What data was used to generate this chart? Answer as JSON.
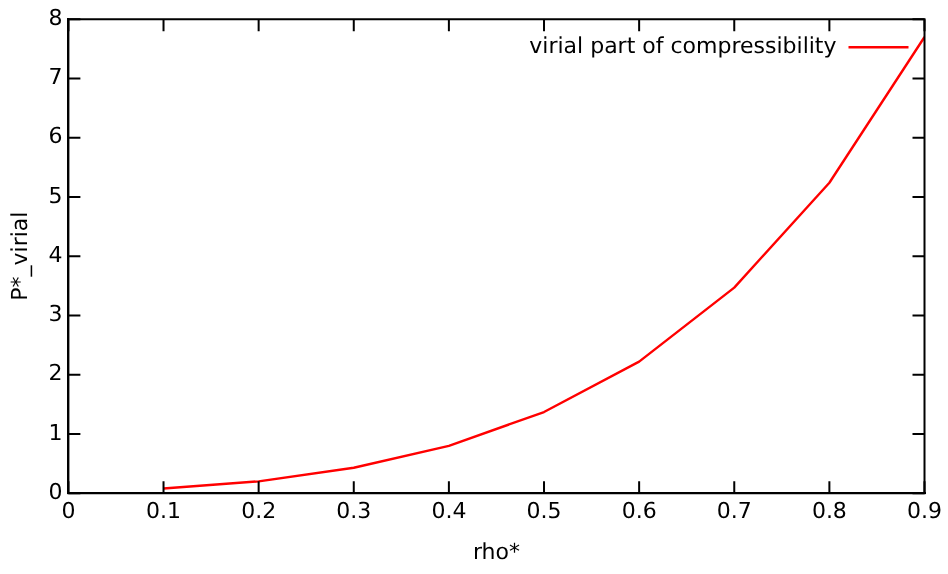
{
  "chart_data": {
    "type": "line",
    "xlabel": "rho*",
    "ylabel": "P*_virial",
    "x": [
      0.1,
      0.2,
      0.3,
      0.4,
      0.5,
      0.6,
      0.7,
      0.8,
      0.9
    ],
    "series": [
      {
        "name": "virial part of compressibility",
        "color": "#ff0000",
        "values": [
          0.08,
          0.2,
          0.43,
          0.8,
          1.37,
          2.22,
          3.47,
          5.24,
          7.7
        ]
      }
    ],
    "xlim": [
      0,
      0.9
    ],
    "xticks": [
      0,
      0.1,
      0.2,
      0.3,
      0.4,
      0.5,
      0.6,
      0.7,
      0.8,
      0.9
    ],
    "ylim": [
      0,
      8
    ],
    "yticks": [
      0,
      1,
      2,
      3,
      4,
      5,
      6,
      7,
      8
    ],
    "grid": false,
    "legend": "top right",
    "marker": "none",
    "line_style": "solid"
  }
}
